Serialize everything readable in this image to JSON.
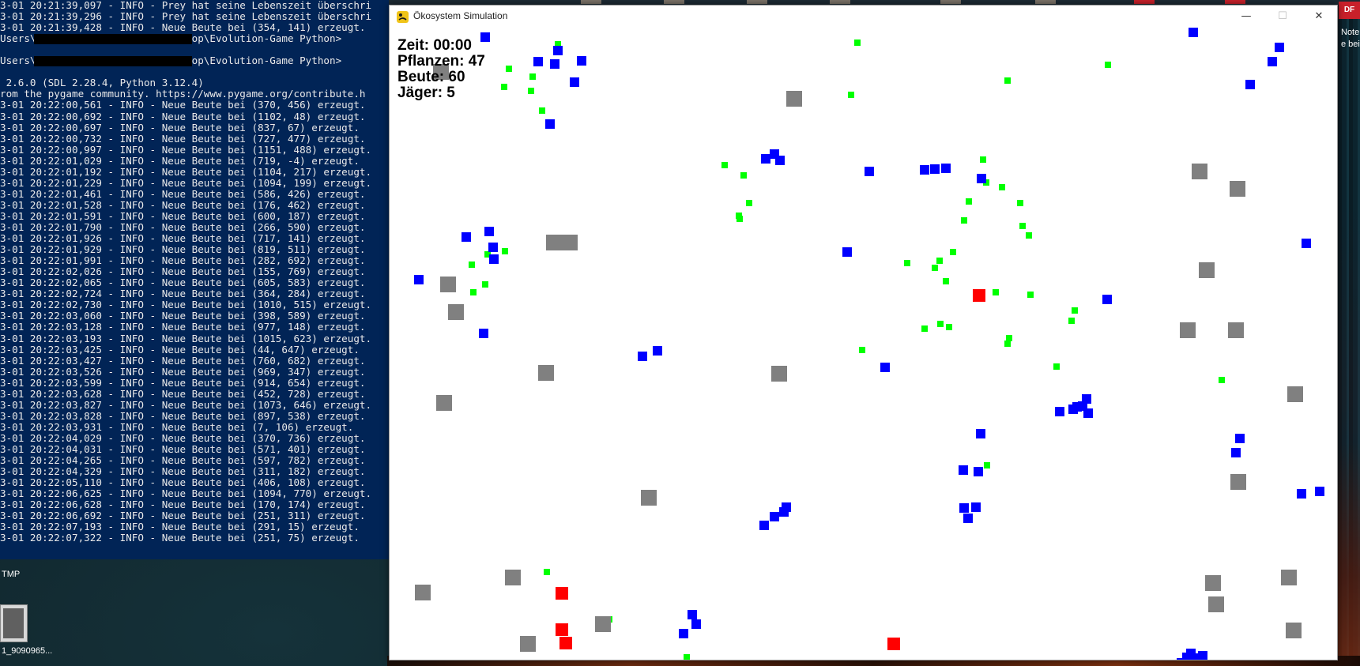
{
  "terminal": {
    "lines": [
      "3-01 20:21:39,097 - INFO - Prey hat seine Lebenszeit überschri",
      "3-01 20:21:39,296 - INFO - Prey hat seine Lebenszeit überschri",
      "3-01 20:21:39,428 - INFO - Neue Beute bei (354, 141) erzeugt.",
      "Users\\                    \\Desktop\\Evolution-Game Python>",
      "",
      "Users\\                    \\Desktop\\Evolution-Game Python>",
      "",
      " 2.6.0 (SDL 2.28.4, Python 3.12.4)",
      "rom the pygame community. https://www.pygame.org/contribute.h",
      "3-01 20:22:00,561 - INFO - Neue Beute bei (370, 456) erzeugt.",
      "3-01 20:22:00,692 - INFO - Neue Beute bei (1102, 48) erzeugt.",
      "3-01 20:22:00,697 - INFO - Neue Beute bei (837, 67) erzeugt.",
      "3-01 20:22:00,732 - INFO - Neue Beute bei (727, 477) erzeugt.",
      "3-01 20:22:00,997 - INFO - Neue Beute bei (1151, 488) erzeugt.",
      "3-01 20:22:01,029 - INFO - Neue Beute bei (719, -4) erzeugt.",
      "3-01 20:22:01,192 - INFO - Neue Beute bei (1104, 217) erzeugt.",
      "3-01 20:22:01,229 - INFO - Neue Beute bei (1094, 199) erzeugt.",
      "3-01 20:22:01,461 - INFO - Neue Beute bei (586, 426) erzeugt.",
      "3-01 20:22:01,528 - INFO - Neue Beute bei (176, 462) erzeugt.",
      "3-01 20:22:01,591 - INFO - Neue Beute bei (600, 187) erzeugt.",
      "3-01 20:22:01,790 - INFO - Neue Beute bei (266, 590) erzeugt.",
      "3-01 20:22:01,926 - INFO - Neue Beute bei (717, 141) erzeugt.",
      "3-01 20:22:01,929 - INFO - Neue Beute bei (819, 511) erzeugt.",
      "3-01 20:22:01,991 - INFO - Neue Beute bei (282, 692) erzeugt.",
      "3-01 20:22:02,026 - INFO - Neue Beute bei (155, 769) erzeugt.",
      "3-01 20:22:02,065 - INFO - Neue Beute bei (605, 583) erzeugt.",
      "3-01 20:22:02,724 - INFO - Neue Beute bei (364, 284) erzeugt.",
      "3-01 20:22:02,730 - INFO - Neue Beute bei (1010, 515) erzeugt.",
      "3-01 20:22:03,060 - INFO - Neue Beute bei (398, 589) erzeugt.",
      "3-01 20:22:03,128 - INFO - Neue Beute bei (977, 148) erzeugt.",
      "3-01 20:22:03,193 - INFO - Neue Beute bei (1015, 623) erzeugt.",
      "3-01 20:22:03,425 - INFO - Neue Beute bei (44, 647) erzeugt.",
      "3-01 20:22:03,427 - INFO - Neue Beute bei (760, 682) erzeugt.",
      "3-01 20:22:03,526 - INFO - Neue Beute bei (969, 347) erzeugt.",
      "3-01 20:22:03,599 - INFO - Neue Beute bei (914, 654) erzeugt.",
      "3-01 20:22:03,628 - INFO - Neue Beute bei (452, 728) erzeugt.",
      "3-01 20:22:03,827 - INFO - Neue Beute bei (1073, 646) erzeugt.",
      "3-01 20:22:03,828 - INFO - Neue Beute bei (897, 538) erzeugt.",
      "3-01 20:22:03,931 - INFO - Neue Beute bei (7, 106) erzeugt.",
      "3-01 20:22:04,029 - INFO - Neue Beute bei (370, 736) erzeugt.",
      "3-01 20:22:04,031 - INFO - Neue Beute bei (571, 401) erzeugt.",
      "3-01 20:22:04,265 - INFO - Neue Beute bei (597, 782) erzeugt.",
      "3-01 20:22:04,329 - INFO - Neue Beute bei (311, 182) erzeugt.",
      "3-01 20:22:05,110 - INFO - Neue Beute bei (406, 108) erzeugt.",
      "3-01 20:22:06,625 - INFO - Neue Beute bei (1094, 770) erzeugt.",
      "3-01 20:22:06,628 - INFO - Neue Beute bei (170, 174) erzeugt.",
      "3-01 20:22:06,692 - INFO - Neue Beute bei (251, 311) erzeugt.",
      "3-01 20:22:07,193 - INFO - Neue Beute bei (291, 15) erzeugt.",
      "3-01 20:22:07,322 - INFO - Neue Beute bei (251, 75) erzeugt."
    ]
  },
  "desktop": {
    "tmp_label": "TMP",
    "file_label": "1_9090965...",
    "right_text_1": "Noteb",
    "right_text_2": "e bei N",
    "pdf_label": "DF"
  },
  "window": {
    "title": "Ökosystem Simulation",
    "minimize_glyph": "—",
    "maximize_glyph": "☐",
    "close_glyph": "✕"
  },
  "hud": {
    "time": "Zeit: 00:00",
    "plants": "Pflanzen: 47",
    "prey": "Beute: 60",
    "hunters": "Jäger: 5"
  },
  "colors": {
    "plant": "#00ff00",
    "prey": "#0000ff",
    "predator": "#808080",
    "hunter": "#ff0000"
  }
}
